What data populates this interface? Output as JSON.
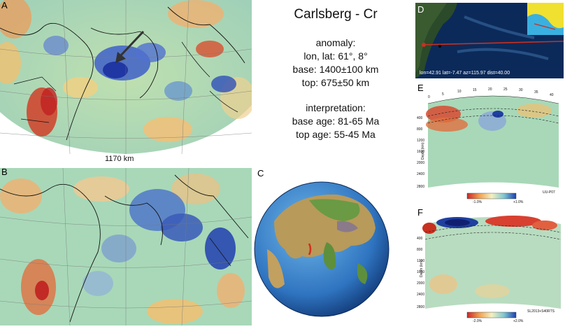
{
  "title": "Carlsberg - Cr",
  "anomaly": {
    "heading": "anomaly:",
    "lonlat": "lon, lat: 61°, 8°",
    "base": "base: 1400±100 km",
    "top": "top: 675±50 km"
  },
  "interpretation": {
    "heading": "interpretation:",
    "base_age": "base age: 81-65 Ma",
    "top_age": "top age: 55-45 Ma"
  },
  "panels": {
    "a": "A",
    "b": "B",
    "c": "C",
    "d": "D",
    "e": "E",
    "f": "F"
  },
  "scale_bar": "1170 km",
  "panel_d": {
    "caption": "lon=42.91 lat=-7.47 az=115.97 dist=40.00"
  },
  "panel_e": {
    "model": "UU-P07",
    "depth_label": "Depth (km)",
    "x_ticks": [
      "0",
      "5",
      "10",
      "15",
      "20",
      "25",
      "30",
      "35",
      "40"
    ],
    "depth_ticks": [
      "400",
      "800",
      "1200",
      "1600",
      "2000",
      "2400",
      "2800"
    ],
    "scale_min": "-1.0%",
    "scale_max": "+1.0%"
  },
  "panel_f": {
    "model": "SL2013+S40RTS",
    "depth_label": "Depth (km)",
    "depth_ticks": [
      "400",
      "800",
      "1200",
      "1600",
      "2000",
      "2400",
      "2800"
    ],
    "scale_min": "-2.0%",
    "scale_max": "+2.0%"
  },
  "colors": {
    "slow": "#c8282a",
    "neutral": "#e8e0a0",
    "fast": "#1e3fb0",
    "ocean_d": "#0b2a5a"
  }
}
